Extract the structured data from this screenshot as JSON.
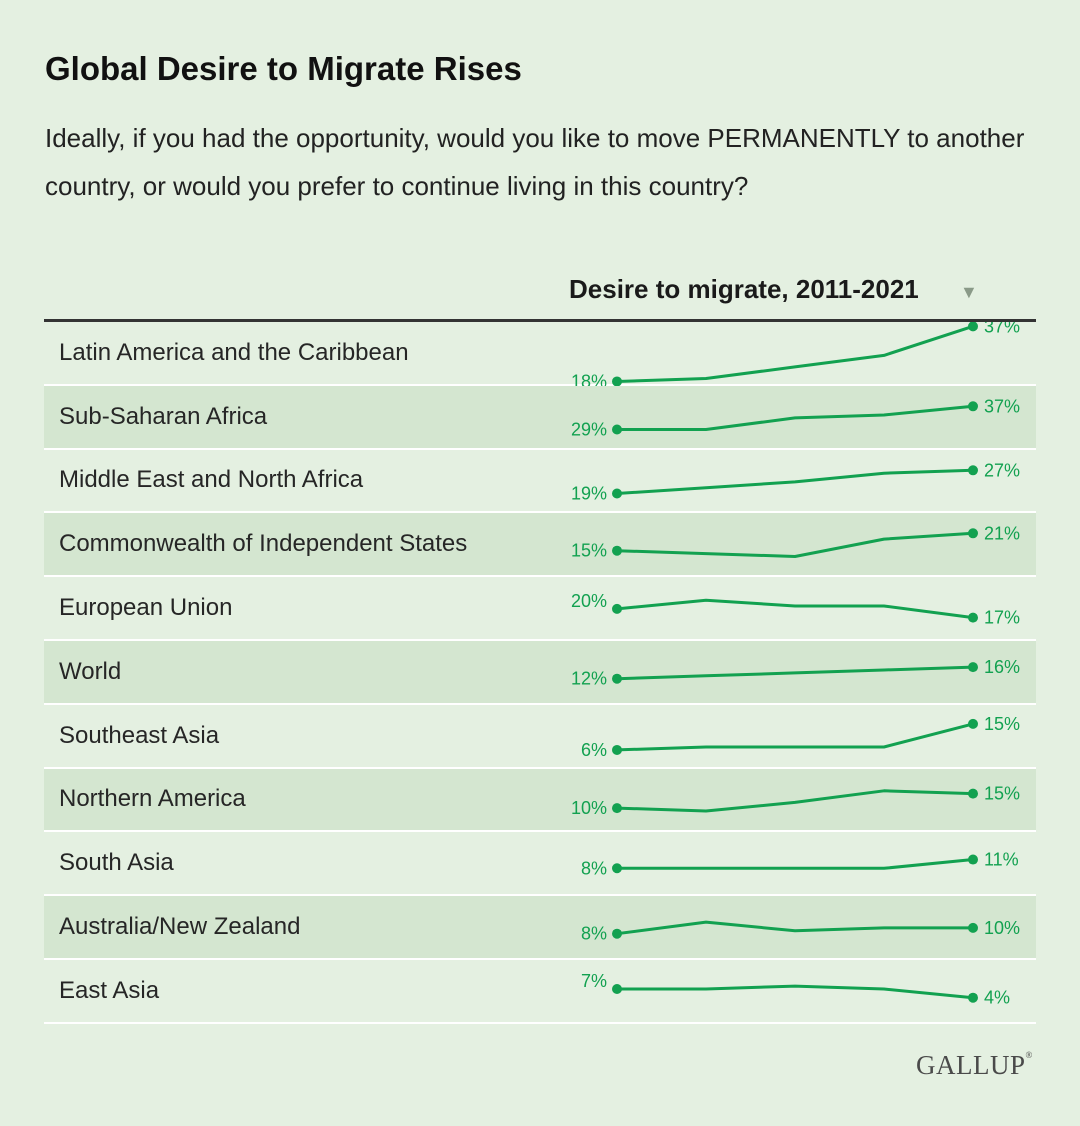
{
  "title": "Global Desire to Migrate Rises",
  "subtitle": "Ideally, if you had the opportunity, would you like to move PERMANENTLY to another country, or would you prefer to continue living in this country?",
  "column_header": "Desire to migrate, 2011-2021",
  "sort_icon": "triangle-down-icon",
  "logo": "GALLUP",
  "colors": {
    "line": "#12a150",
    "label": "#12a150",
    "shade": "#d4e6d0",
    "background": "#e4f0e1"
  },
  "chart_data": {
    "type": "line",
    "title": "Desire to migrate, 2011-2021",
    "unit": "%",
    "series": [
      {
        "name": "Latin America and the Caribbean",
        "values": [
          18,
          19,
          23,
          27,
          37
        ],
        "start_label": "18%",
        "end_label": "37%"
      },
      {
        "name": "Sub-Saharan Africa",
        "values": [
          29,
          29,
          33,
          34,
          37
        ],
        "start_label": "29%",
        "end_label": "37%"
      },
      {
        "name": "Middle East and North Africa",
        "values": [
          19,
          21,
          23,
          26,
          27
        ],
        "start_label": "19%",
        "end_label": "27%"
      },
      {
        "name": "Commonwealth of Independent States",
        "values": [
          15,
          14,
          13,
          19,
          21
        ],
        "start_label": "15%",
        "end_label": "21%"
      },
      {
        "name": "European Union",
        "values": [
          20,
          23,
          21,
          21,
          17
        ],
        "start_label": "20%",
        "end_label": "17%"
      },
      {
        "name": "World",
        "values": [
          12,
          13,
          14,
          15,
          16
        ],
        "start_label": "12%",
        "end_label": "16%"
      },
      {
        "name": "Southeast Asia",
        "values": [
          6,
          7,
          7,
          7,
          15
        ],
        "start_label": "6%",
        "end_label": "15%"
      },
      {
        "name": "Northern America",
        "values": [
          10,
          9,
          12,
          16,
          15
        ],
        "start_label": "10%",
        "end_label": "15%"
      },
      {
        "name": "South Asia",
        "values": [
          8,
          8,
          8,
          8,
          11
        ],
        "start_label": "8%",
        "end_label": "11%"
      },
      {
        "name": "Australia/New Zealand",
        "values": [
          8,
          12,
          9,
          10,
          10
        ],
        "start_label": "8%",
        "end_label": "10%"
      },
      {
        "name": "East Asia",
        "values": [
          7,
          7,
          8,
          7,
          4
        ],
        "start_label": "7%",
        "end_label": "4%"
      }
    ]
  }
}
